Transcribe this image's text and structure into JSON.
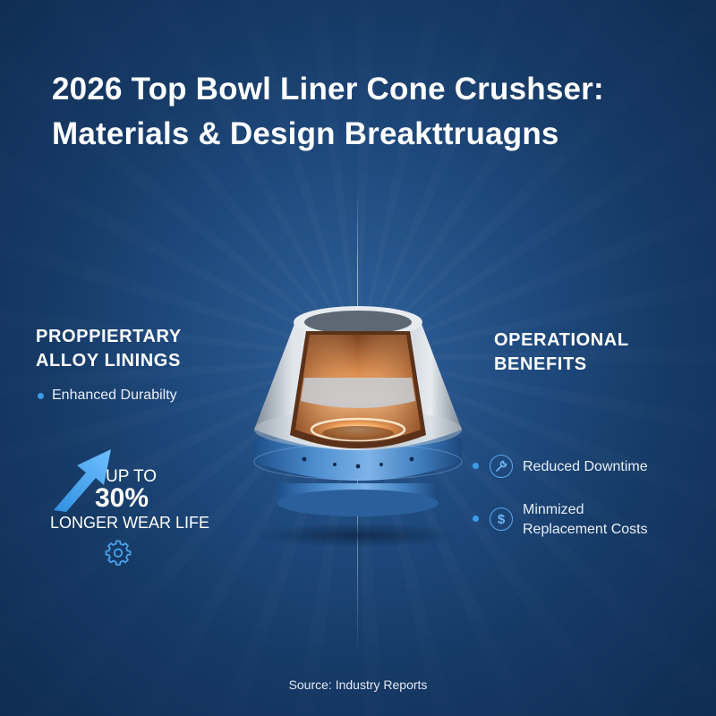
{
  "title": {
    "line1": "2026 Top Bowl Liner Cone Crushser:",
    "line2": "Materials & Design Breakttruagns"
  },
  "left": {
    "heading_line1": "PROPPIERTARY",
    "heading_line2": "ALLOY LININGS",
    "bullet": "Enhanced Durabilty",
    "stat_prefix": "UP TO",
    "stat_value": "30%",
    "stat_suffix": "LONGER WEAR LIFE",
    "icon": "gear-icon"
  },
  "right": {
    "heading_line1": "OPERATIONAL",
    "heading_line2": "BENEFITS",
    "benefits": [
      {
        "icon": "wrench-icon",
        "line1": "Reduced Downtime",
        "line2": ""
      },
      {
        "icon": "dollar-icon",
        "line1": "Minmized",
        "line2": "Replacement Costs"
      }
    ]
  },
  "source": "Source: Industry Reports",
  "colors": {
    "background": "#1f4a7e",
    "accent": "#3d9be9",
    "copper": "#e0874a",
    "steel": "#c4cbd3"
  }
}
